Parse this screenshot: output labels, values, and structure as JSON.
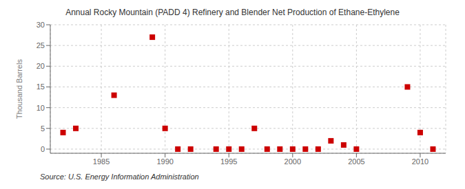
{
  "chart_data": {
    "type": "scatter",
    "title": "Annual Rocky Mountain (PADD 4) Refinery and Blender Net Production of Ethane-Ethylene",
    "ylabel": "Thousand Barrels",
    "source": "Source: U.S. Energy Information Administration",
    "x": [
      1982,
      1983,
      1986,
      1989,
      1990,
      1991,
      1992,
      1994,
      1995,
      1996,
      1997,
      1998,
      1999,
      2000,
      2001,
      2002,
      2003,
      2004,
      2005,
      2009,
      2010,
      2011
    ],
    "values": [
      4,
      5,
      13,
      27,
      5,
      0,
      0,
      0,
      0,
      0,
      5,
      0,
      0,
      0,
      0,
      0,
      2,
      1,
      0,
      15,
      4,
      0
    ],
    "color": "#cc0000",
    "marker": "square",
    "xlim": [
      1981,
      2012
    ],
    "ylim": [
      -1,
      30
    ],
    "xticks": [
      1985,
      1990,
      1995,
      2000,
      2005,
      2010
    ],
    "yticks": [
      0,
      5,
      10,
      15,
      20,
      25,
      30
    ],
    "grid": true
  }
}
